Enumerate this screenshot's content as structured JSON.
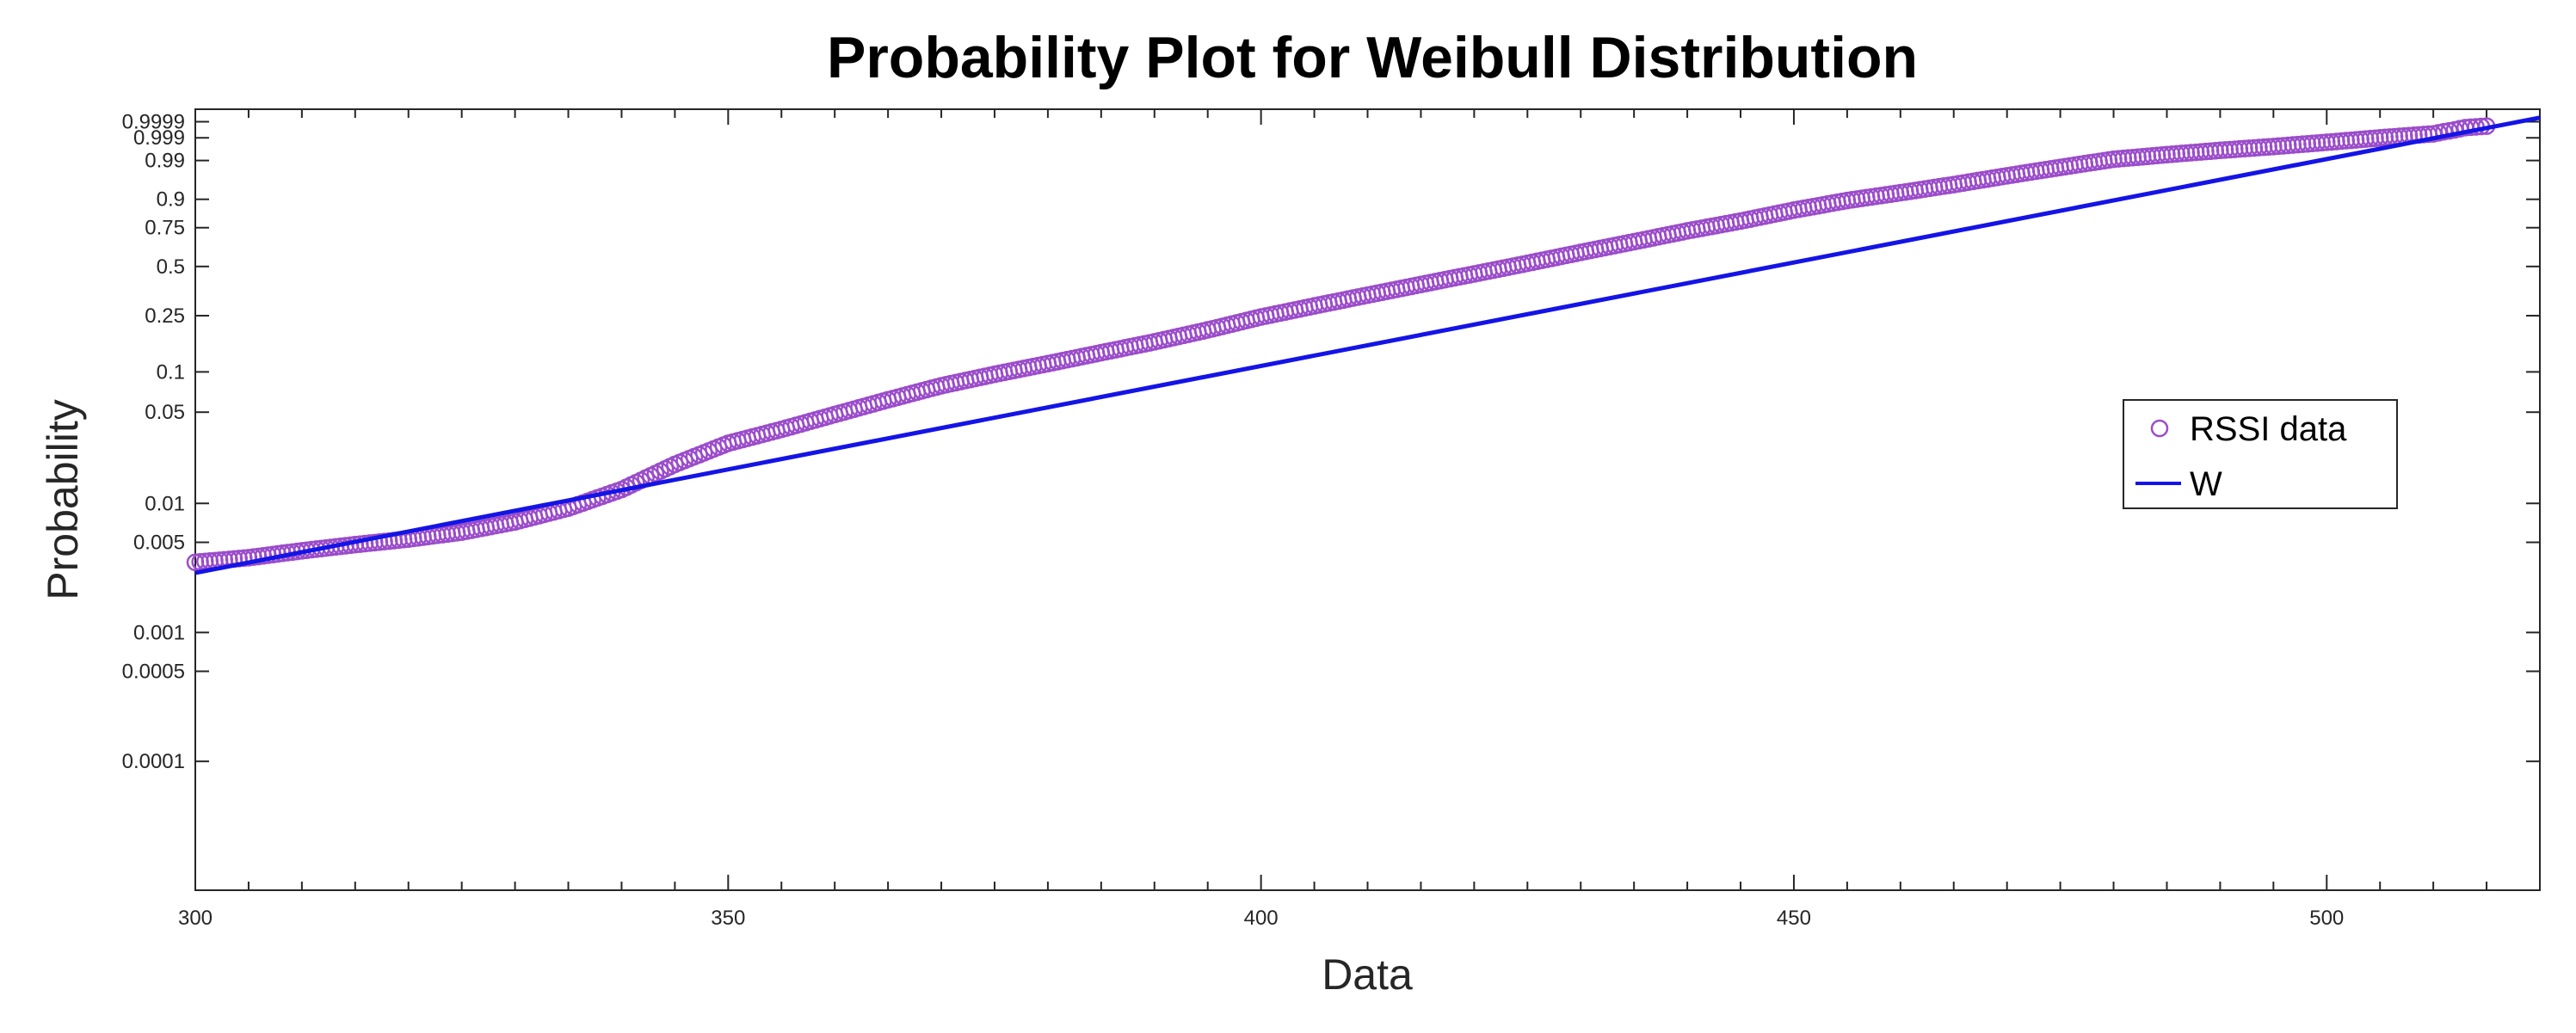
{
  "chart_data": {
    "type": "scatter",
    "title": "Probability Plot for Weibull Distribution",
    "xlabel": "Data",
    "ylabel": "Probability",
    "xlim": [
      300,
      520
    ],
    "x_ticks": [
      300,
      350,
      400,
      450,
      500
    ],
    "x_tick_labels": [
      "300",
      "350",
      "400",
      "450",
      "500"
    ],
    "y_scale": "weibull",
    "ylim": [
      1e-05,
      0.99999
    ],
    "y_ticks": [
      0.0001,
      0.0005,
      0.001,
      0.005,
      0.01,
      0.05,
      0.1,
      0.25,
      0.5,
      0.75,
      0.9,
      0.99,
      0.999,
      0.9999
    ],
    "y_tick_labels": [
      "0.0001",
      "0.0005",
      "0.001",
      "0.005",
      "0.01",
      "0.05",
      "0.1",
      "0.25",
      "0.5",
      "0.75",
      "0.9",
      "0.99",
      "0.999",
      "0.9999"
    ],
    "grid": false,
    "legend": {
      "position": "right",
      "entries": [
        "RSSI data",
        "W"
      ]
    },
    "series": [
      {
        "name": "RSSI data",
        "kind": "scatter",
        "marker": "circle-open",
        "color": "#9b4dca",
        "anchors": [
          [
            300,
            0.0035
          ],
          [
            305,
            0.0038
          ],
          [
            310,
            0.0043
          ],
          [
            315,
            0.0048
          ],
          [
            320,
            0.0053
          ],
          [
            325,
            0.006
          ],
          [
            330,
            0.0072
          ],
          [
            335,
            0.0092
          ],
          [
            340,
            0.0128
          ],
          [
            345,
            0.02
          ],
          [
            350,
            0.029
          ],
          [
            355,
            0.037
          ],
          [
            360,
            0.048
          ],
          [
            365,
            0.062
          ],
          [
            370,
            0.079
          ],
          [
            375,
            0.096
          ],
          [
            380,
            0.115
          ],
          [
            385,
            0.138
          ],
          [
            390,
            0.165
          ],
          [
            395,
            0.2
          ],
          [
            400,
            0.245
          ],
          [
            405,
            0.29
          ],
          [
            410,
            0.34
          ],
          [
            415,
            0.395
          ],
          [
            420,
            0.455
          ],
          [
            425,
            0.52
          ],
          [
            430,
            0.59
          ],
          [
            435,
            0.66
          ],
          [
            440,
            0.73
          ],
          [
            445,
            0.79
          ],
          [
            450,
            0.85
          ],
          [
            455,
            0.895
          ],
          [
            460,
            0.925
          ],
          [
            465,
            0.95
          ],
          [
            470,
            0.97
          ],
          [
            475,
            0.983
          ],
          [
            480,
            0.991
          ],
          [
            485,
            0.994
          ],
          [
            490,
            0.996
          ],
          [
            495,
            0.9973
          ],
          [
            500,
            0.9983
          ],
          [
            505,
            0.999
          ],
          [
            510,
            0.9994
          ],
          [
            511,
            0.99955
          ],
          [
            512,
            0.99965
          ],
          [
            513,
            0.99975
          ],
          [
            515,
            0.9998
          ]
        ]
      },
      {
        "name": "W",
        "kind": "line",
        "color": "#1414e6",
        "points": [
          [
            300,
            0.0029
          ],
          [
            520,
            0.99995
          ]
        ]
      }
    ]
  }
}
